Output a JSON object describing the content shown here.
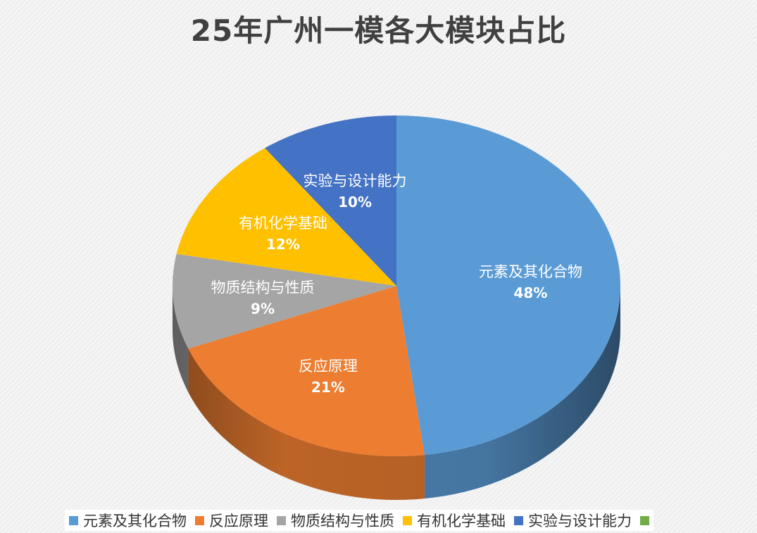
{
  "chart_data": {
    "type": "pie",
    "title": "25年广州一模各大模块占比",
    "categories": [
      "元素及其化合物",
      "反应原理",
      "物质结构与性质",
      "有机化学基础",
      "实验与设计能力"
    ],
    "values": [
      48,
      21,
      9,
      12,
      10
    ],
    "value_labels": [
      "48%",
      "21%",
      "9%",
      "12%",
      "10%"
    ],
    "colors": [
      "#5B9BD5",
      "#ED7D31",
      "#A5A5A5",
      "#FFC000",
      "#4472C4"
    ],
    "legend": {
      "position": "bottom",
      "entries": [
        "元素及其化合物",
        "反应原理",
        "物质结构与性质",
        "有机化学基础",
        "实验与设计能力",
        ""
      ],
      "colors": [
        "#5B9BD5",
        "#ED7D31",
        "#A5A5A5",
        "#FFC000",
        "#4472C4",
        "#70AD47"
      ]
    }
  }
}
